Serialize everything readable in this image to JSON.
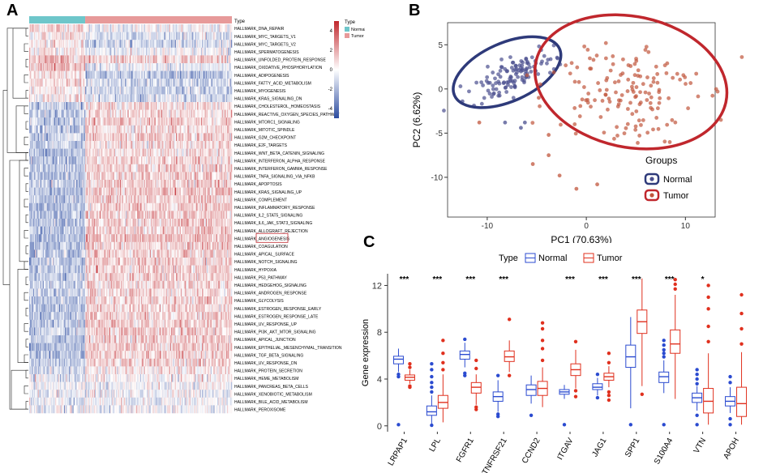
{
  "chart_data": [
    {
      "panel": "A",
      "type": "heatmap",
      "title": "",
      "annotation_label": "Type",
      "annotation_groups": [
        {
          "name": "Normal",
          "color": "#6EC6CA"
        },
        {
          "name": "Tumor",
          "color": "#E79A9A"
        }
      ],
      "colorbar_ticks": [
        4,
        2,
        0,
        -2,
        -4
      ],
      "colorbar_range": [
        -5,
        5
      ],
      "colors": {
        "high": "#C0272D",
        "mid": "#FFFFFF",
        "low": "#2B4BA0"
      },
      "rows": [
        "HALLMARK_DNA_REPAIR",
        "HALLMARK_MYC_TARGETS_V1",
        "HALLMARK_MYC_TARGETS_V2",
        "HALLMARK_SPERMATOGENESIS",
        "HALLMARK_UNFOLDED_PROTEIN_RESPONSE",
        "HALLMARK_OXIDATIVE_PHOSPHORYLATION",
        "HALLMARK_ADIPOGENESIS",
        "HALLMARK_FATTY_ACID_METABOLISM",
        "HALLMARK_MYOGENESIS",
        "HALLMARK_KRAS_SIGNALING_DN",
        "HALLMARK_CHOLESTEROL_HOMEOSTASIS",
        "HALLMARK_REACTIVE_OXYGEN_SPECIES_PATHWAY",
        "HALLMARK_MTORC1_SIGNALING",
        "HALLMARK_MITOTIC_SPINDLE",
        "HALLMARK_G2M_CHECKPOINT",
        "HALLMARK_E2F_TARGETS",
        "HALLMARK_WNT_BETA_CATENIN_SIGNALING",
        "HALLMARK_INTERFERON_ALPHA_RESPONSE",
        "HALLMARK_INTERFERON_GAMMA_RESPONSE",
        "HALLMARK_TNFA_SIGNALING_VIA_NFKB",
        "HALLMARK_APOPTOSIS",
        "HALLMARK_KRAS_SIGNALING_UP",
        "HALLMARK_COMPLEMENT",
        "HALLMARK_INFLAMMATORY_RESPONSE",
        "HALLMARK_IL2_STAT5_SIGNALING",
        "HALLMARK_IL6_JAK_STAT3_SIGNALING",
        "HALLMARK_ALLOGRAFT_REJECTION",
        "HALLMARK_ANGIOGENESIS",
        "HALLMARK_COAGULATION",
        "HALLMARK_APICAL_SURFACE",
        "HALLMARK_NOTCH_SIGNALING",
        "HALLMARK_HYPOXIA",
        "HALLMARK_P53_PATHWAY",
        "HALLMARK_HEDGEHOG_SIGNALING",
        "HALLMARK_ANDROGEN_RESPONSE",
        "HALLMARK_GLYCOLYSIS",
        "HALLMARK_ESTROGEN_RESPONSE_EARLY",
        "HALLMARK_ESTROGEN_RESPONSE_LATE",
        "HALLMARK_UV_RESPONSE_UP",
        "HALLMARK_PI3K_AKT_MTOR_SIGNALING",
        "HALLMARK_APICAL_JUNCTION",
        "HALLMARK_EPITHELIAL_MESENCHYMAL_TRANSITION",
        "HALLMARK_TGF_BETA_SIGNALING",
        "HALLMARK_UV_RESPONSE_DN",
        "HALLMARK_PROTEIN_SECRETION",
        "HALLMARK_HEME_METABOLISM",
        "HALLMARK_PANCREAS_BETA_CELLS",
        "HALLMARK_XENOBIOTIC_METABOLISM",
        "HALLMARK_BILE_ACID_METABOLISM",
        "HALLMARK_PEROXISOME"
      ],
      "row_prefix": "HALLMARK_",
      "highlighted_row": "HALLMARK_ANGIOGENESIS",
      "highlighted_text": "ANGIOGENESIS",
      "row_tendency_normal": [
        1,
        0.5,
        0.3,
        0.4,
        1.5,
        1.3,
        0.8,
        0.6,
        0.3,
        0.4,
        -1.2,
        -1.6,
        -1.4,
        -1.6,
        -1.4,
        -1.4,
        -1.7,
        -1.6,
        -1.6,
        -1.7,
        -1.5,
        -1.8,
        -1.6,
        -1.8,
        -1.7,
        -1.7,
        -1.7,
        -1.8,
        -1.7,
        -1.6,
        -1.6,
        -1.7,
        -1.6,
        -1.5,
        -1.5,
        -1.6,
        -1.6,
        -1.6,
        -1.5,
        -1.5,
        -1.6,
        -1.8,
        -1.6,
        -1.5,
        -1,
        -0.6,
        -0.2,
        -0.4,
        -0.4,
        -0.5
      ],
      "row_tendency_tumor": [
        -0.3,
        -0.8,
        -1,
        -0.4,
        1.2,
        -0.6,
        -1.5,
        -1.2,
        -1.2,
        -1,
        0.8,
        0.7,
        1,
        0.8,
        0.9,
        0.8,
        0.8,
        1,
        1,
        1,
        1,
        1.2,
        1.1,
        1.2,
        1.1,
        1.1,
        1.2,
        1.3,
        1.1,
        1,
        1,
        1.1,
        1,
        0.9,
        0.9,
        1,
        1,
        1,
        1,
        1,
        1.1,
        1.2,
        1.1,
        1,
        0.4,
        0,
        -0.3,
        -0.2,
        -0.2,
        -0.2
      ]
    },
    {
      "panel": "B",
      "type": "scatter",
      "xlabel": "PC1 (70.63%)",
      "ylabel": "PC2 (6.62%)",
      "xlim": [
        -14,
        13
      ],
      "ylim": [
        -14.5,
        7.5
      ],
      "xticks": [
        -10,
        0,
        10
      ],
      "yticks": [
        5,
        0,
        -5,
        -10
      ],
      "legend_title": "Groups",
      "series": [
        {
          "name": "Normal",
          "color": "#4A4F8F",
          "ellipse_color": "#2E3A7A",
          "center": [
            -7.5,
            1.5
          ],
          "spread": [
            2.2,
            0.9
          ],
          "tilt": 0.45,
          "count": 120,
          "ellipse": {
            "cx": -8,
            "cy": 1.9,
            "rx": 5.8,
            "ry": 3.3,
            "angle": 24
          },
          "outliers": [
            [
              -12.5,
              -1.4
            ],
            [
              -8.2,
              -3.8
            ],
            [
              -6.2,
              -3.8
            ],
            [
              -6.6,
              -4.4
            ],
            [
              -7.1,
              2.6
            ]
          ]
        },
        {
          "name": "Tumor",
          "color": "#C0553C",
          "ellipse_color": "#C0272D",
          "center": [
            3.8,
            0
          ],
          "spread": [
            3.6,
            3.0
          ],
          "tilt": 0,
          "count": 150,
          "ellipse": {
            "cx": 4.5,
            "cy": 0.8,
            "rx": 9.8,
            "ry": 7.4,
            "angle": -12
          },
          "outliers": [
            [
              -3.8,
              -5.2
            ],
            [
              -5.4,
              -8.5
            ],
            [
              -2.7,
              -9.8
            ],
            [
              -3.8,
              -7.5
            ],
            [
              -1,
              -11.3
            ],
            [
              1.1,
              -10.8
            ],
            [
              -10.8,
              -3.8
            ],
            [
              -4.8,
              -1
            ]
          ]
        }
      ]
    },
    {
      "panel": "C",
      "type": "box",
      "legend_title": "Type",
      "ylabel": "Gene expression",
      "ylim": [
        -0.5,
        13
      ],
      "yticks": [
        0,
        4,
        8,
        12
      ],
      "categories": [
        "LRPAP1",
        "LPL",
        "FGFR1",
        "TNFRSF21",
        "CCND2",
        "ITGAV",
        "JAG1",
        "SPP1",
        "S100A4",
        "VTN",
        "APOH"
      ],
      "significance": [
        "***",
        "***",
        "***",
        "***",
        "",
        "***",
        "***",
        "***",
        "***",
        "*",
        ""
      ],
      "series": [
        {
          "name": "Normal",
          "color": "#2B4BD0",
          "boxes": [
            {
              "min": 4.6,
              "q1": 5.3,
              "median": 5.7,
              "q3": 5.95,
              "max": 6.6,
              "outliers": [
                4.2,
                4.4,
                0.1
              ]
            },
            {
              "min": 0.2,
              "q1": 0.9,
              "median": 1.2,
              "q3": 1.7,
              "max": 2.6,
              "outliers": [
                2.9,
                3.3,
                3.7,
                4.2,
                4.8,
                5.3,
                0.05
              ]
            },
            {
              "min": 5.0,
              "q1": 5.7,
              "median": 6.1,
              "q3": 6.4,
              "max": 7.1,
              "outliers": [
                4.3,
                4.5,
                7.4
              ]
            },
            {
              "min": 1.2,
              "q1": 2.1,
              "median": 2.5,
              "q3": 2.9,
              "max": 3.9,
              "outliers": [
                1.0,
                0.8,
                4.3
              ]
            },
            {
              "min": 1.9,
              "q1": 2.6,
              "median": 3.1,
              "q3": 3.5,
              "max": 4.3,
              "outliers": [
                0.9
              ]
            },
            {
              "min": 2.3,
              "q1": 2.7,
              "median": 2.9,
              "q3": 3.1,
              "max": 3.5,
              "outliers": [
                0.1
              ]
            },
            {
              "min": 2.6,
              "q1": 3.1,
              "median": 3.3,
              "q3": 3.6,
              "max": 4.1,
              "outliers": [
                2.4,
                4.4
              ]
            },
            {
              "min": 1.5,
              "q1": 5.0,
              "median": 5.9,
              "q3": 6.9,
              "max": 9.3,
              "outliers": [
                0.1
              ]
            },
            {
              "min": 2.8,
              "q1": 3.7,
              "median": 4.2,
              "q3": 4.6,
              "max": 5.6,
              "outliers": [
                5.9,
                6.2,
                6.5,
                6.9,
                7.3,
                0.1
              ]
            },
            {
              "min": 1.3,
              "q1": 2.0,
              "median": 2.4,
              "q3": 2.8,
              "max": 3.4,
              "outliers": [
                3.6,
                4.0,
                4.4,
                4.8,
                0.1,
                0.9
              ]
            },
            {
              "min": 1.1,
              "q1": 1.7,
              "median": 2.1,
              "q3": 2.5,
              "max": 3.3,
              "outliers": [
                3.7,
                4.2,
                0.1,
                0.6
              ]
            }
          ]
        },
        {
          "name": "Tumor",
          "color": "#E0301E",
          "boxes": [
            {
              "min": 3.6,
              "q1": 3.9,
              "median": 4.15,
              "q3": 4.35,
              "max": 4.8,
              "outliers": [
                3.3,
                3.4,
                5.0,
                5.3
              ]
            },
            {
              "min": 0.3,
              "q1": 1.5,
              "median": 2.0,
              "q3": 2.6,
              "max": 4.4,
              "outliers": [
                4.8,
                5.4,
                6.2,
                7.3
              ]
            },
            {
              "min": 1.8,
              "q1": 2.8,
              "median": 3.3,
              "q3": 3.7,
              "max": 4.4,
              "outliers": [
                1.4,
                1.6,
                4.9,
                5.6
              ]
            },
            {
              "min": 4.6,
              "q1": 5.5,
              "median": 5.9,
              "q3": 6.4,
              "max": 7.3,
              "outliers": [
                4.3,
                9.1
              ]
            },
            {
              "min": 1.6,
              "q1": 2.6,
              "median": 3.2,
              "q3": 3.8,
              "max": 5.0,
              "outliers": [
                5.6,
                6.6,
                7.3,
                8.3,
                8.8
              ]
            },
            {
              "min": 3.2,
              "q1": 4.3,
              "median": 4.8,
              "q3": 5.3,
              "max": 6.5,
              "outliers": [
                2.5,
                3.0,
                7.2
              ]
            },
            {
              "min": 3.3,
              "q1": 3.9,
              "median": 4.2,
              "q3": 4.5,
              "max": 5.1,
              "outliers": [
                2.2,
                2.6,
                2.9,
                5.4,
                6.2
              ]
            },
            {
              "min": 3.4,
              "q1": 7.9,
              "median": 8.9,
              "q3": 9.9,
              "max": 12.6,
              "outliers": [
                2.7
              ]
            },
            {
              "min": 2.3,
              "q1": 6.2,
              "median": 7.0,
              "q3": 8.2,
              "max": 11.2,
              "outliers": [
                11.7,
                12.1,
                12.5
              ]
            },
            {
              "min": 0.1,
              "q1": 1.1,
              "median": 2.1,
              "q3": 3.2,
              "max": 6.2,
              "outliers": [
                7.2,
                8.5,
                10.0,
                11.0,
                12.0
              ]
            },
            {
              "min": 0.1,
              "q1": 0.8,
              "median": 1.9,
              "q3": 3.3,
              "max": 6.3,
              "outliers": [
                7.0,
                8.3,
                9.6,
                11.2
              ]
            }
          ]
        }
      ]
    }
  ],
  "panels": {
    "a_label": "A",
    "b_label": "B",
    "c_label": "C"
  }
}
